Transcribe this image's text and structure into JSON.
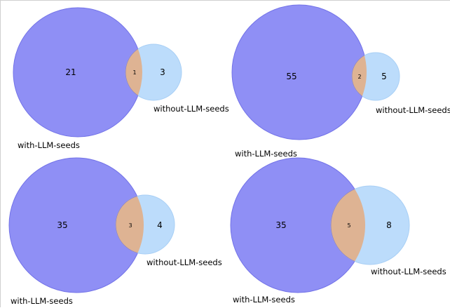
{
  "chart_data": [
    {
      "type": "venn",
      "sets": [
        "with-LLM-seeds",
        "without-LLM-seeds"
      ],
      "only_a": 21,
      "intersection": 1,
      "only_b": 3,
      "colors": {
        "a": "#8f8ff5",
        "b": "#bcdcfb",
        "overlap": "#deb393"
      }
    },
    {
      "type": "venn",
      "sets": [
        "with-LLM-seeds",
        "without-LLM-seeds"
      ],
      "only_a": 55,
      "intersection": 2,
      "only_b": 5,
      "colors": {
        "a": "#8f8ff5",
        "b": "#bcdcfb",
        "overlap": "#deb393"
      }
    },
    {
      "type": "venn",
      "sets": [
        "with-LLM-seeds",
        "without-LLM-seeds"
      ],
      "only_a": 35,
      "intersection": 3,
      "only_b": 4,
      "colors": {
        "a": "#8f8ff5",
        "b": "#bcdcfb",
        "overlap": "#deb393"
      }
    },
    {
      "type": "venn",
      "sets": [
        "with-LLM-seeds",
        "without-LLM-seeds"
      ],
      "only_a": 35,
      "intersection": 5,
      "only_b": 8,
      "colors": {
        "a": "#8f8ff5",
        "b": "#bcdcfb",
        "overlap": "#deb393"
      }
    }
  ]
}
